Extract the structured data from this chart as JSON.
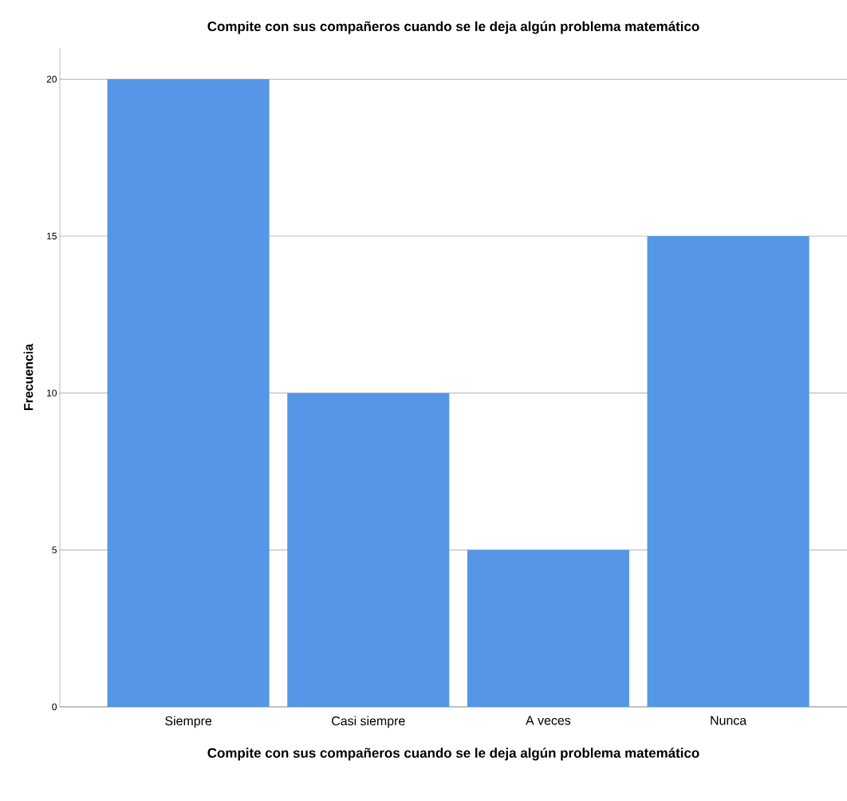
{
  "chart_data": {
    "type": "bar",
    "title": "Compite con sus compañeros cuando se le deja algún problema matemático",
    "xlabel": "Compite con sus compañeros cuando se le deja algún problema matemático",
    "ylabel": "Frecuencia",
    "categories": [
      "Siempre",
      "Casi siempre",
      "A veces",
      "Nunca"
    ],
    "values": [
      20,
      10,
      5,
      15
    ],
    "color": "#5596e6",
    "ylim": [
      0,
      21
    ],
    "yticks": [
      0,
      5,
      10,
      15,
      20
    ],
    "grid": "y"
  }
}
